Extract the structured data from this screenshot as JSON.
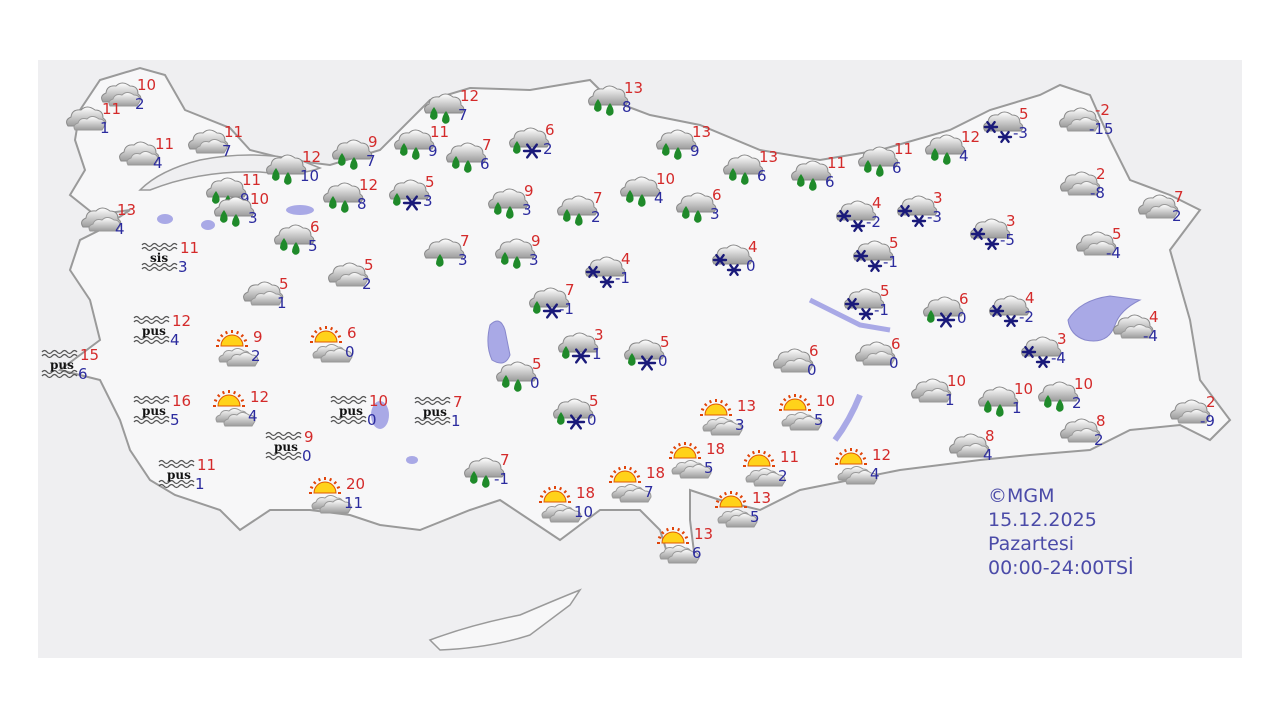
{
  "colors": {
    "max_temp": "#d42a2a",
    "min_temp": "#2b2b9e",
    "rain": "#1f8a2a",
    "snow": "#1a1a7a",
    "land": "#f7f7f8",
    "border": "#9a9a9a",
    "water": "#a9a9e6"
  },
  "icon_types": {
    "c": "cloudy-icon",
    "r": "rain-icon",
    "r1": "light-rain-icon",
    "rs": "sleet-icon",
    "s": "snow-icon",
    "p": "partly-sunny-icon",
    "f": "fog-icon"
  },
  "info": {
    "copyright": "©MGM",
    "date": "15.12.2025",
    "day": "Pazartesi",
    "period": "00:00-24:00TSİ"
  },
  "stations": [
    {
      "type": "c",
      "max": "10",
      "min": "2"
    },
    {
      "type": "c",
      "max": "11",
      "min": "1"
    },
    {
      "type": "c",
      "max": "11",
      "min": "4"
    },
    {
      "type": "c",
      "max": "11",
      "min": "7"
    },
    {
      "type": "r",
      "max": "12",
      "min": "7"
    },
    {
      "type": "r",
      "max": "11",
      "min": "9"
    },
    {
      "type": "r",
      "max": "9",
      "min": "7"
    },
    {
      "type": "r",
      "max": "12",
      "min": "10"
    },
    {
      "type": "r",
      "max": "11",
      "min": "9"
    },
    {
      "type": "r",
      "max": "12",
      "min": "8"
    },
    {
      "type": "rs",
      "max": "5",
      "min": "3"
    },
    {
      "type": "r",
      "max": "7",
      "min": "6"
    },
    {
      "type": "rs",
      "max": "6",
      "min": "2"
    },
    {
      "type": "r",
      "max": "13",
      "min": "8"
    },
    {
      "type": "r",
      "max": "13",
      "min": "9"
    },
    {
      "type": "r",
      "max": "13",
      "min": "6"
    },
    {
      "type": "r",
      "max": "11",
      "min": "6"
    },
    {
      "type": "r",
      "max": "11",
      "min": "6"
    },
    {
      "type": "r",
      "max": "12",
      "min": "4"
    },
    {
      "type": "s",
      "max": "5",
      "min": "-3"
    },
    {
      "type": "c",
      "max": "-2",
      "min": "-15"
    },
    {
      "type": "c",
      "max": "2",
      "min": "-8"
    },
    {
      "type": "c",
      "max": "7",
      "min": "2"
    },
    {
      "type": "c",
      "max": "5",
      "min": "-4"
    },
    {
      "type": "s",
      "max": "4",
      "min": "-2"
    },
    {
      "type": "s",
      "max": "3",
      "min": "-3"
    },
    {
      "type": "s",
      "max": "3",
      "min": "-5"
    },
    {
      "type": "s",
      "max": "5",
      "min": "-1"
    },
    {
      "type": "s",
      "max": "5",
      "min": "-1"
    },
    {
      "type": "rs",
      "max": "6",
      "min": "0"
    },
    {
      "type": "s",
      "max": "4",
      "min": "-2"
    },
    {
      "type": "s",
      "max": "3",
      "min": "-4"
    },
    {
      "type": "c",
      "max": "4",
      "min": "-4"
    },
    {
      "type": "c",
      "max": "6",
      "min": "0"
    },
    {
      "type": "c",
      "max": "6",
      "min": "0"
    },
    {
      "type": "c",
      "max": "10",
      "min": "1"
    },
    {
      "type": "r",
      "max": "10",
      "min": "1"
    },
    {
      "type": "r",
      "max": "10",
      "min": "2"
    },
    {
      "type": "c",
      "max": "2",
      "min": "-9"
    },
    {
      "type": "c",
      "max": "8",
      "min": "2"
    },
    {
      "type": "c",
      "max": "8",
      "min": "4"
    },
    {
      "type": "p",
      "max": "12",
      "min": "4"
    },
    {
      "type": "p",
      "max": "10",
      "min": "5"
    },
    {
      "type": "p",
      "max": "13",
      "min": "3"
    },
    {
      "type": "p",
      "max": "11",
      "min": "2"
    },
    {
      "type": "p",
      "max": "18",
      "min": "5"
    },
    {
      "type": "p",
      "max": "13",
      "min": "5"
    },
    {
      "type": "p",
      "max": "13",
      "min": "6"
    },
    {
      "type": "p",
      "max": "18",
      "min": "7"
    },
    {
      "type": "p",
      "max": "18",
      "min": "10"
    },
    {
      "type": "r",
      "max": "7",
      "min": "-1"
    },
    {
      "type": "rs",
      "max": "5",
      "min": "0"
    },
    {
      "type": "rs",
      "max": "5",
      "min": "0"
    },
    {
      "type": "rs",
      "max": "3",
      "min": "1"
    },
    {
      "type": "r",
      "max": "5",
      "min": "0"
    },
    {
      "type": "rs",
      "max": "7",
      "min": "-1"
    },
    {
      "type": "s",
      "max": "4",
      "min": "-1"
    },
    {
      "type": "s",
      "max": "4",
      "min": "0"
    },
    {
      "type": "r",
      "max": "6",
      "min": "3"
    },
    {
      "type": "r",
      "max": "10",
      "min": "4"
    },
    {
      "type": "r",
      "max": "7",
      "min": "2"
    },
    {
      "type": "r",
      "max": "9",
      "min": "3"
    },
    {
      "type": "r",
      "max": "9",
      "min": "3"
    },
    {
      "type": "r1",
      "max": "7",
      "min": "3"
    },
    {
      "type": "r",
      "max": "10",
      "min": "3"
    },
    {
      "type": "r",
      "max": "6",
      "min": "5"
    },
    {
      "type": "c",
      "max": "13",
      "min": "4"
    },
    {
      "type": "f",
      "label": "sis",
      "max": "11",
      "min": "3"
    },
    {
      "type": "c",
      "max": "5",
      "min": "2"
    },
    {
      "type": "c",
      "max": "5",
      "min": "1"
    },
    {
      "type": "f",
      "label": "pus",
      "max": "12",
      "min": "4"
    },
    {
      "type": "f",
      "label": "pus",
      "max": "15",
      "min": "6"
    },
    {
      "type": "p",
      "max": "9",
      "min": "2"
    },
    {
      "type": "p",
      "max": "6",
      "min": "0"
    },
    {
      "type": "f",
      "label": "pus",
      "max": "16",
      "min": "5"
    },
    {
      "type": "p",
      "max": "12",
      "min": "4"
    },
    {
      "type": "f",
      "label": "pus",
      "max": "10",
      "min": "0"
    },
    {
      "type": "f",
      "label": "pus",
      "max": "7",
      "min": "1"
    },
    {
      "type": "f",
      "label": "pus",
      "max": "9",
      "min": "0"
    },
    {
      "type": "f",
      "label": "pus",
      "max": "11",
      "min": "1"
    },
    {
      "type": "p",
      "max": "20",
      "min": "11"
    }
  ]
}
